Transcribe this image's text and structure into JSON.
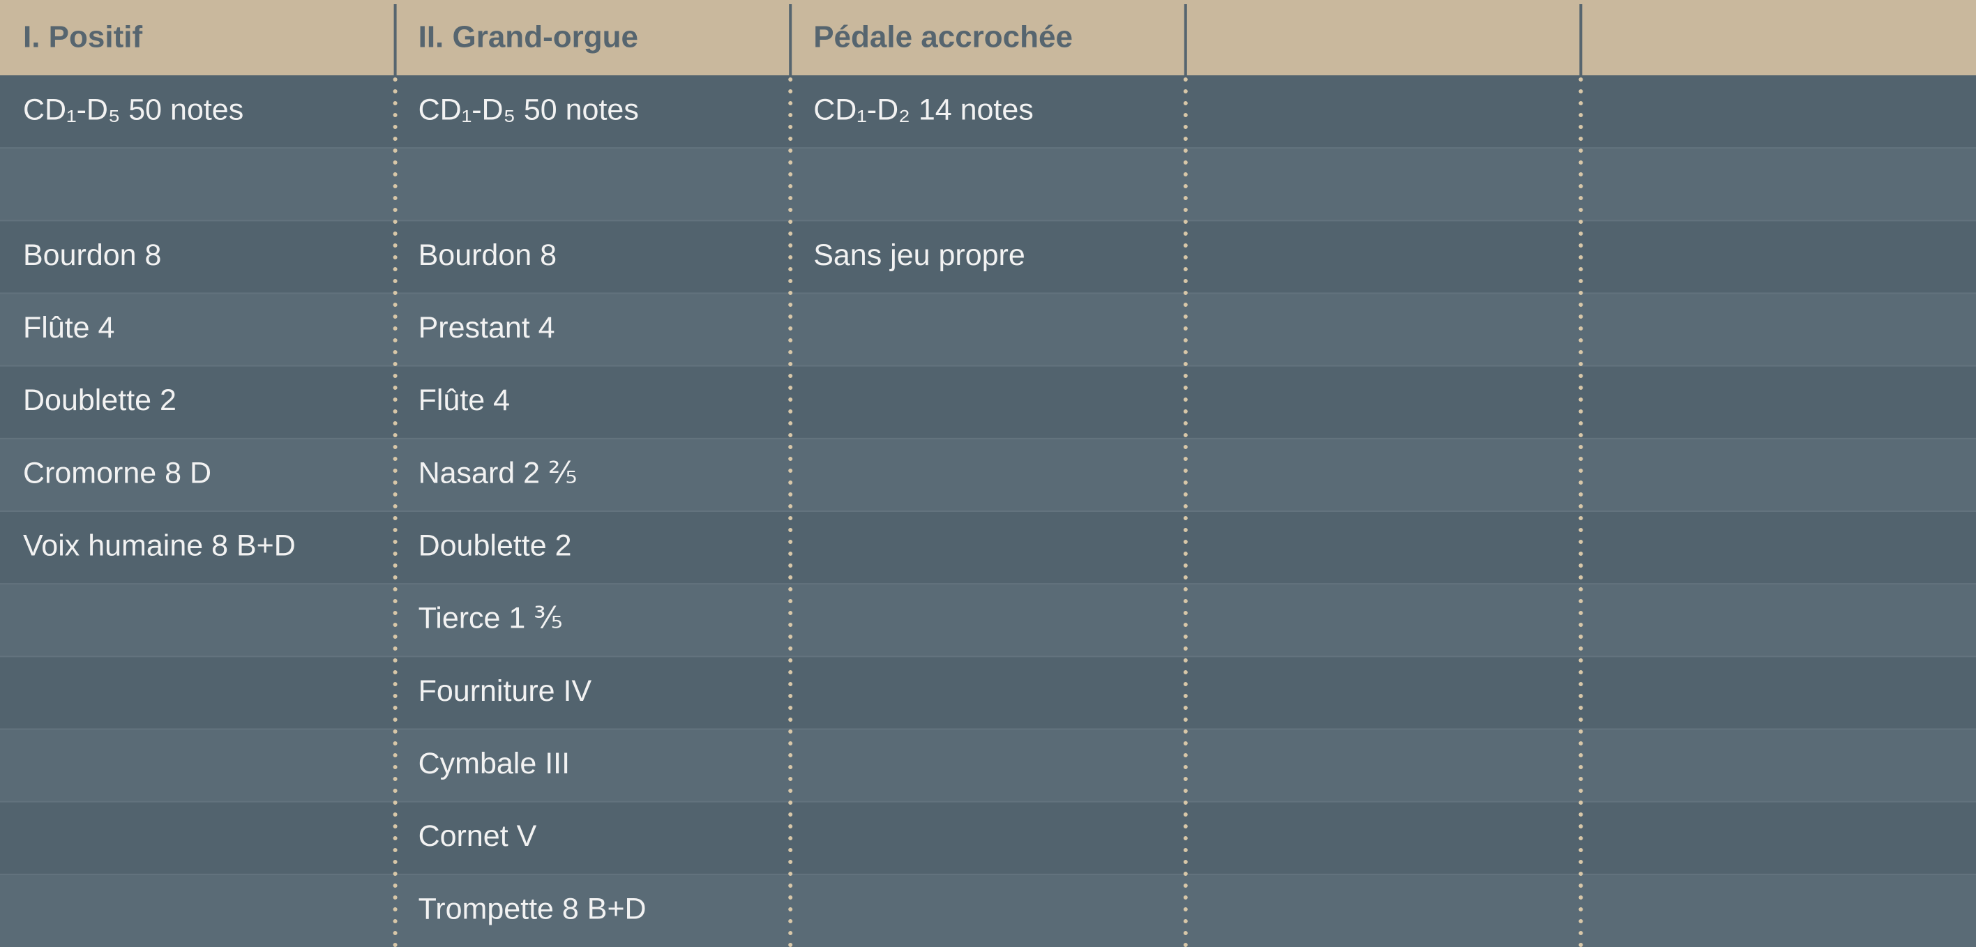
{
  "table": {
    "columns": [
      {
        "title": "I. Positif",
        "compass": "CD₁-D₅  50 notes",
        "stops": [
          "Bourdon 8",
          "Flûte 4",
          "Doublette 2",
          "Cromorne 8 D",
          "Voix humaine 8 B+D"
        ]
      },
      {
        "title": "II. Grand-orgue",
        "compass": "CD₁-D₅  50 notes",
        "stops": [
          "Bourdon 8",
          "Prestant 4",
          "Flûte 4",
          "Nasard 2 ⅖",
          "Doublette 2",
          "Tierce 1 ⅗",
          "Fourniture IV",
          "Cymbale III",
          "Cornet V",
          "Trompette 8 B+D"
        ]
      },
      {
        "title": "Pédale accrochée",
        "compass": "CD₁-D₂  14 notes",
        "stops": [
          "Sans jeu propre"
        ]
      }
    ]
  }
}
